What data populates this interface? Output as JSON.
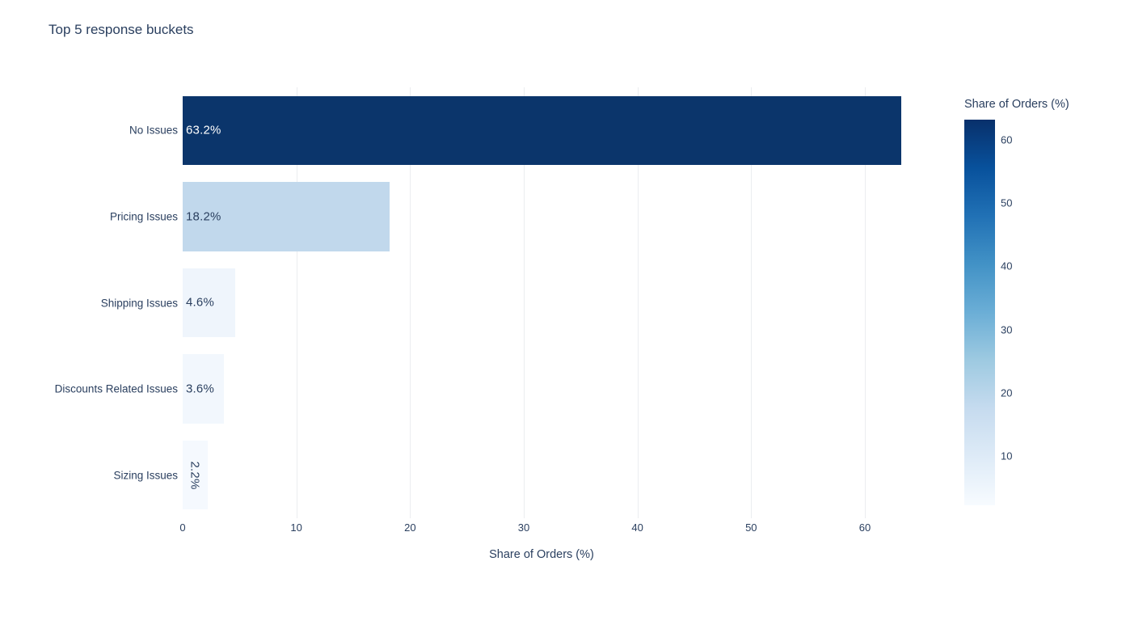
{
  "page": {
    "background_color": "#ffffff",
    "text_color": "#2a3f5f"
  },
  "chart_data": {
    "type": "bar",
    "orientation": "horizontal",
    "title": "Top 5 response buckets",
    "xlabel": "Share of Orders (%)",
    "ylabel": "",
    "categories": [
      "No Issues",
      "Pricing Issues",
      "Shipping Issues",
      "Discounts Related Issues",
      "Sizing Issues"
    ],
    "values": [
      63.2,
      18.2,
      4.6,
      3.6,
      2.2
    ],
    "bar_labels": [
      "63.2%",
      "18.2%",
      "4.6%",
      "3.6%",
      "2.2%"
    ],
    "bar_colors": [
      "#0b356b",
      "#c1d8ec",
      "#eff5fc",
      "#f2f7fd",
      "#f5f9fe"
    ],
    "bar_label_colors": [
      "#ffffff",
      "#2a3f5f",
      "#2a3f5f",
      "#2a3f5f",
      "#2a3f5f"
    ],
    "bar_label_rotated": [
      false,
      false,
      false,
      false,
      true
    ],
    "xlim": [
      0,
      63.2
    ],
    "xticks": [
      0,
      10,
      20,
      30,
      40,
      50,
      60
    ],
    "grid": true,
    "grid_color": "#ebedf0",
    "legend_position": "right-colorbar",
    "colorbar": {
      "title": "Share of Orders (%)",
      "ticks": [
        60,
        50,
        40,
        30,
        20,
        10
      ],
      "range": [
        2.2,
        63.2
      ],
      "gradient": [
        {
          "pos": 0.0,
          "color": "#08306b"
        },
        {
          "pos": 0.125,
          "color": "#08519c"
        },
        {
          "pos": 0.25,
          "color": "#2171b5"
        },
        {
          "pos": 0.375,
          "color": "#4292c6"
        },
        {
          "pos": 0.5,
          "color": "#6baed6"
        },
        {
          "pos": 0.625,
          "color": "#9ecae1"
        },
        {
          "pos": 0.75,
          "color": "#c6dbef"
        },
        {
          "pos": 0.875,
          "color": "#deebf7"
        },
        {
          "pos": 1.0,
          "color": "#f7fbff"
        }
      ]
    }
  }
}
